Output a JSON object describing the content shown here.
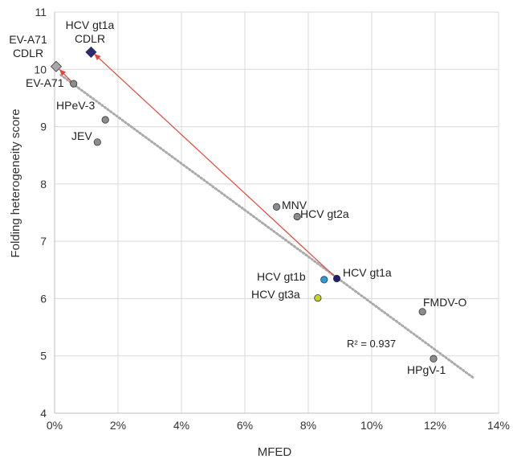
{
  "chart_data": {
    "type": "scatter",
    "xlabel": "MFED",
    "ylabel": "Folding heterogeneity score",
    "xlim": [
      0,
      14
    ],
    "ylim": [
      4,
      11
    ],
    "x_ticks": [
      {
        "value": 0,
        "label": "0%"
      },
      {
        "value": 2,
        "label": "2%"
      },
      {
        "value": 4,
        "label": "4%"
      },
      {
        "value": 6,
        "label": "6%"
      },
      {
        "value": 8,
        "label": "8%"
      },
      {
        "value": 10,
        "label": "10%"
      },
      {
        "value": 12,
        "label": "12%"
      },
      {
        "value": 14,
        "label": "14%"
      }
    ],
    "y_ticks": [
      {
        "value": 4,
        "label": "4"
      },
      {
        "value": 5,
        "label": "5"
      },
      {
        "value": 6,
        "label": "6"
      },
      {
        "value": 7,
        "label": "7"
      },
      {
        "value": 8,
        "label": "8"
      },
      {
        "value": 9,
        "label": "9"
      },
      {
        "value": 10,
        "label": "10"
      },
      {
        "value": 11,
        "label": "11"
      }
    ],
    "grid": true,
    "points": [
      {
        "label": "EV-A71",
        "x": 0.6,
        "y": 9.75,
        "color": "#8c8c8c",
        "shape": "circle"
      },
      {
        "label": "HPeV-3",
        "x": 1.6,
        "y": 9.12,
        "color": "#8c8c8c",
        "shape": "circle"
      },
      {
        "label": "JEV",
        "x": 1.35,
        "y": 8.73,
        "color": "#8c8c8c",
        "shape": "circle"
      },
      {
        "label": "MNV",
        "x": 7.0,
        "y": 7.6,
        "color": "#8c8c8c",
        "shape": "circle"
      },
      {
        "label": "HCV gt2a",
        "x": 7.65,
        "y": 7.43,
        "color": "#8c8c8c",
        "shape": "circle"
      },
      {
        "label": "HCV gt1a",
        "x": 8.9,
        "y": 6.35,
        "color": "#1f1f6e",
        "shape": "circle"
      },
      {
        "label": "HCV gt1b",
        "x": 8.5,
        "y": 6.33,
        "color": "#2e9bd6",
        "shape": "circle"
      },
      {
        "label": "HCV gt3a",
        "x": 8.3,
        "y": 6.01,
        "color": "#c5d22e",
        "shape": "circle"
      },
      {
        "label": "FMDV-O",
        "x": 11.6,
        "y": 5.77,
        "color": "#8c8c8c",
        "shape": "circle"
      },
      {
        "label": "HPgV-1",
        "x": 11.95,
        "y": 4.95,
        "color": "#8c8c8c",
        "shape": "circle"
      },
      {
        "label": "HCV gt1a CDLR",
        "x": 1.15,
        "y": 10.3,
        "color": "#2a2a7a",
        "shape": "diamond"
      },
      {
        "label": "EV-A71 CDLR",
        "x": 0.05,
        "y": 10.05,
        "color": "#a8a8a8",
        "shape": "diamond"
      }
    ],
    "trendline": {
      "x": [
        0.2,
        13.2
      ],
      "y": [
        9.9,
        4.62
      ],
      "style": "dotted",
      "color": "#aaaaaa"
    },
    "arrows": [
      {
        "from": {
          "x": 8.9,
          "y": 6.35
        },
        "to": {
          "x": 1.25,
          "y": 10.27
        },
        "color": "#e0483c"
      },
      {
        "from": {
          "x": 0.6,
          "y": 9.75
        },
        "to": {
          "x": 0.15,
          "y": 10.0
        },
        "color": "#e0483c"
      }
    ],
    "annotations": [
      {
        "text": "R² = 0.937"
      }
    ],
    "colors": {
      "grid": "#d9d9d9",
      "axis": "#bfbfbf",
      "trend": "#aaaaaa",
      "arrow": "#e0483c"
    }
  }
}
